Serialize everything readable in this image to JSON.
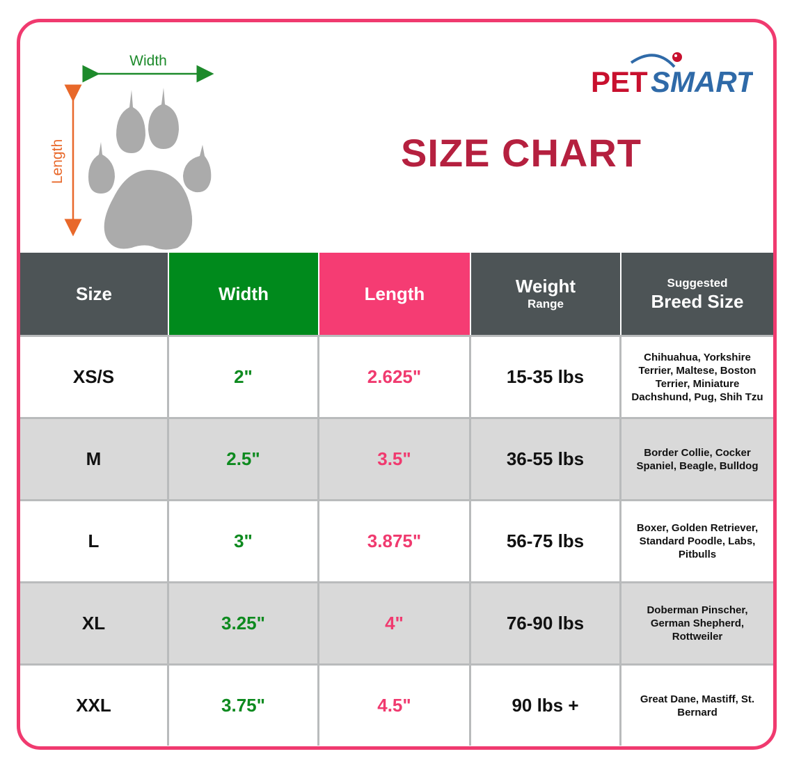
{
  "diagram": {
    "width_label": "Width",
    "length_label": "Length"
  },
  "logo": {
    "text_pet": "PET",
    "text_smart": "SMART"
  },
  "title": "SIZE CHART",
  "header": {
    "size": "Size",
    "width": "Width",
    "length": "Length",
    "weight_main": "Weight",
    "weight_sub": "Range",
    "breed_top": "Suggested",
    "breed_main": "Breed Size"
  },
  "colors": {
    "border": "#f03a6f",
    "title": "#b5203f",
    "width": "#008a1c",
    "length": "#f53c73",
    "header_gray": "#4d5456",
    "alt_row": "#d9d9d9"
  },
  "chart_data": {
    "type": "table",
    "title": "SIZE CHART",
    "columns": [
      "Size",
      "Width",
      "Length",
      "Weight Range",
      "Suggested Breed Size"
    ],
    "rows": [
      {
        "size": "XS/S",
        "width": "2\"",
        "length": "2.625\"",
        "weight": "15-35 lbs",
        "breed": "Chihuahua, Yorkshire Terrier, Maltese, Boston Terrier, Miniature Dachshund, Pug, Shih Tzu"
      },
      {
        "size": "M",
        "width": "2.5\"",
        "length": "3.5\"",
        "weight": "36-55 lbs",
        "breed": "Border Collie, Cocker Spaniel, Beagle, Bulldog"
      },
      {
        "size": "L",
        "width": "3\"",
        "length": "3.875\"",
        "weight": "56-75 lbs",
        "breed": "Boxer, Golden Retriever, Standard Poodle, Labs, Pitbulls"
      },
      {
        "size": "XL",
        "width": "3.25\"",
        "length": "4\"",
        "weight": "76-90 lbs",
        "breed": "Doberman Pinscher, German Shepherd, Rottweiler"
      },
      {
        "size": "XXL",
        "width": "3.75\"",
        "length": "4.5\"",
        "weight": "90 lbs +",
        "breed": "Great Dane, Mastiff, St. Bernard"
      }
    ]
  }
}
